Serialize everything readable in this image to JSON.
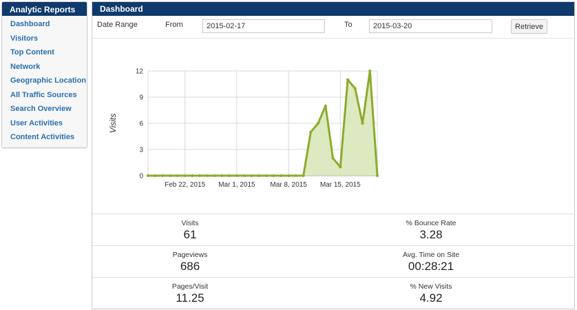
{
  "sidebar": {
    "title": "Analytic Reports",
    "items": [
      {
        "label": "Dashboard"
      },
      {
        "label": "Visitors"
      },
      {
        "label": "Top Content"
      },
      {
        "label": "Network"
      },
      {
        "label": "Geographic Location"
      },
      {
        "label": "All Traffic Sources"
      },
      {
        "label": "Search Overview"
      },
      {
        "label": "User Activities"
      },
      {
        "label": "Content Activities"
      }
    ]
  },
  "panel": {
    "title": "Dashboard"
  },
  "filters": {
    "date_range_label": "Date Range",
    "from_label": "From",
    "from_value": "2015-02-17",
    "to_label": "To",
    "to_value": "2015-03-20",
    "retrieve_label": "Retrieve"
  },
  "colors": {
    "header_bg": "#0f3a6b",
    "link": "#2a6fb0",
    "series_line": "#8aac2a",
    "series_fill": "#d9e7b9",
    "grid": "#d8d8d8"
  },
  "chart_data": {
    "type": "area",
    "ylabel": "Visits",
    "xlabel": "",
    "ylim": [
      0,
      12
    ],
    "yticks": [
      0,
      3,
      6,
      9,
      12
    ],
    "xticks": [
      {
        "date": "2015-02-22",
        "label": "Feb 22, 2015"
      },
      {
        "date": "2015-03-01",
        "label": "Mar 1, 2015"
      },
      {
        "date": "2015-03-08",
        "label": "Mar 8, 2015"
      },
      {
        "date": "2015-03-15",
        "label": "Mar 15, 2015"
      }
    ],
    "grid": true,
    "series": [
      {
        "x": [
          "2015-02-17",
          "2015-02-18",
          "2015-02-19",
          "2015-02-20",
          "2015-02-21",
          "2015-02-22",
          "2015-02-23",
          "2015-02-24",
          "2015-02-25",
          "2015-02-26",
          "2015-02-27",
          "2015-02-28",
          "2015-03-01",
          "2015-03-02",
          "2015-03-03",
          "2015-03-04",
          "2015-03-05",
          "2015-03-06",
          "2015-03-07",
          "2015-03-08",
          "2015-03-09",
          "2015-03-10",
          "2015-03-11",
          "2015-03-12",
          "2015-03-13",
          "2015-03-14",
          "2015-03-15",
          "2015-03-16",
          "2015-03-17",
          "2015-03-18",
          "2015-03-19",
          "2015-03-20"
        ],
        "values": [
          0,
          0,
          0,
          0,
          0,
          0,
          0,
          0,
          0,
          0,
          0,
          0,
          0,
          0,
          0,
          0,
          0,
          0,
          0,
          0,
          0,
          0,
          5,
          6,
          8,
          2,
          1,
          11,
          10,
          6,
          12,
          0
        ]
      }
    ]
  },
  "stats": [
    {
      "label": "Visits",
      "value": "61"
    },
    {
      "label": "% Bounce Rate",
      "value": "3.28"
    },
    {
      "label": "Pageviews",
      "value": "686"
    },
    {
      "label": "Avg. Time on Site",
      "value": "00:28:21"
    },
    {
      "label": "Pages/Visit",
      "value": "11.25"
    },
    {
      "label": "% New Visits",
      "value": "4.92"
    }
  ]
}
